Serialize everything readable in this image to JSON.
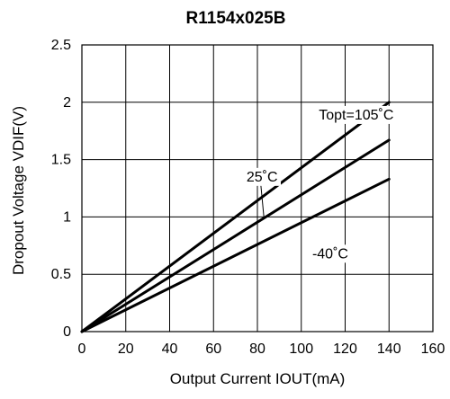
{
  "chart_data": {
    "type": "line",
    "title": "R1154x025B",
    "xlabel": "Output Current IOUT(mA)",
    "ylabel": "Dropout Voltage VDIF(V)",
    "xlim": [
      0,
      160
    ],
    "ylim": [
      0,
      2.5
    ],
    "x_ticks": [
      "0",
      "20",
      "40",
      "60",
      "80",
      "100",
      "120",
      "140",
      "160"
    ],
    "y_ticks": [
      "0",
      "0.5",
      "1",
      "1.5",
      "2",
      "2.5"
    ],
    "grid": true,
    "legend": "none",
    "series": [
      {
        "name": "Topt=105˚C",
        "x": [
          0,
          140
        ],
        "y": [
          0,
          2.0
        ]
      },
      {
        "name": "25˚C",
        "x": [
          0,
          140
        ],
        "y": [
          0,
          1.67
        ]
      },
      {
        "name": "-40˚C",
        "x": [
          0,
          140
        ],
        "y": [
          0,
          1.33
        ]
      }
    ],
    "annotations": [
      {
        "text": "Topt=105˚C",
        "x": 108,
        "y": 1.85,
        "series": 0
      },
      {
        "text": "25˚C",
        "x": 75,
        "y": 1.31,
        "series": 1,
        "leader_to": [
          83,
          0.99
        ]
      },
      {
        "text": "-40˚C",
        "x": 105,
        "y": 0.64,
        "series": 2
      }
    ]
  }
}
